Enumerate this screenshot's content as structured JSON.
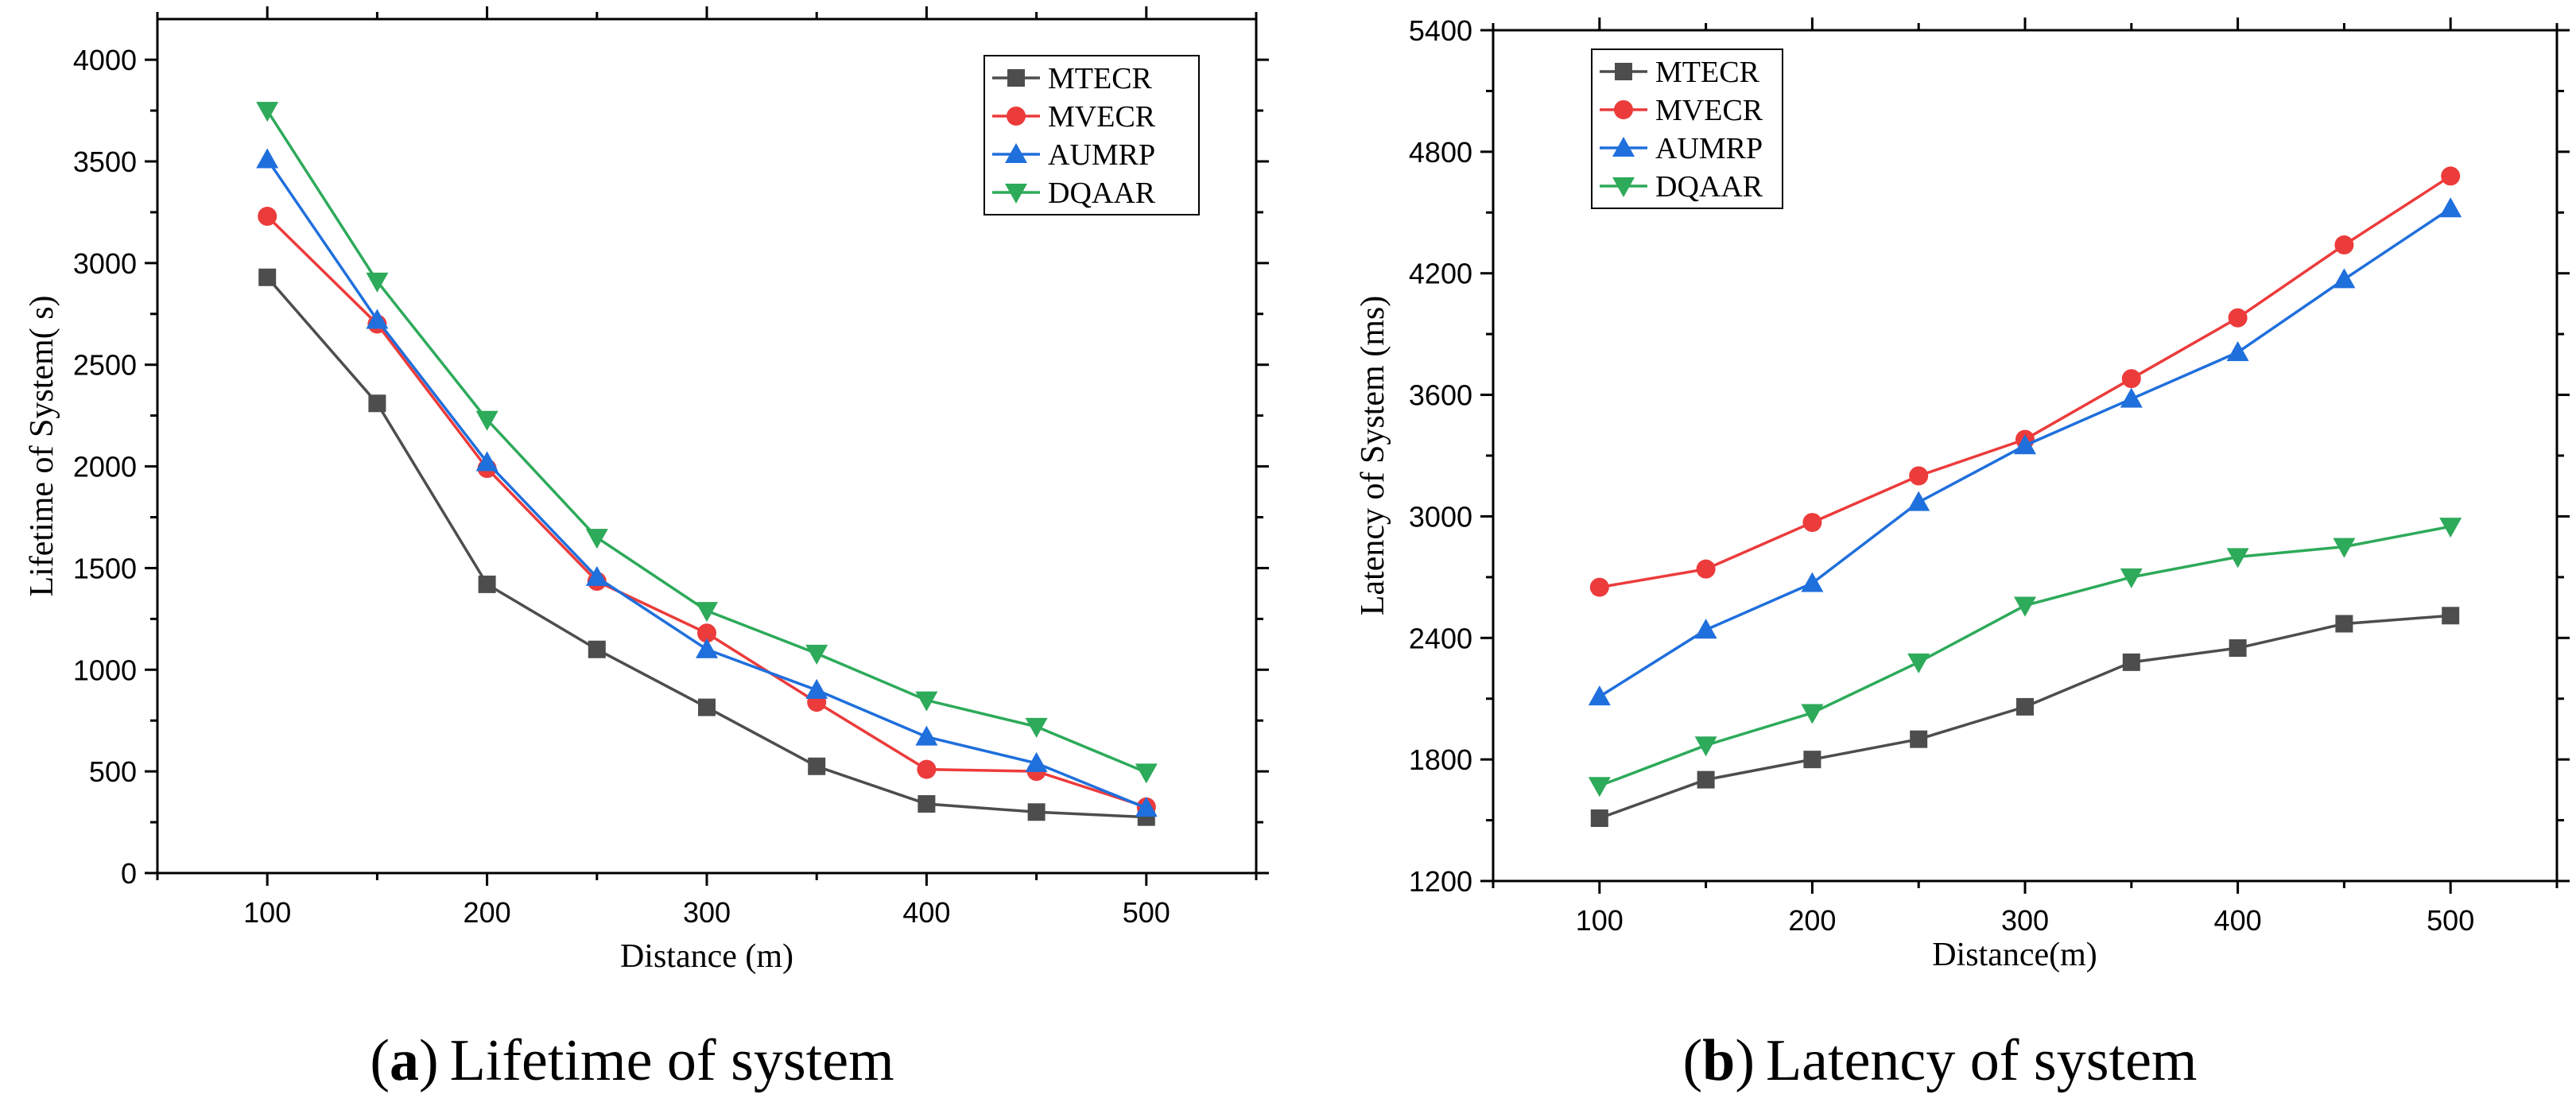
{
  "chart_data": [
    {
      "type": "line",
      "caption_label": "(a)",
      "caption_text": "Lifetime of system",
      "xlabel": "Distance (m)",
      "ylabel": "Lifetime of System( s)",
      "x": [
        100,
        150,
        200,
        250,
        300,
        350,
        400,
        450,
        500
      ],
      "xlim": [
        50,
        550
      ],
      "xticks": [
        100,
        200,
        300,
        400,
        500
      ],
      "ylim": [
        0,
        4200
      ],
      "yticks": [
        0,
        500,
        1000,
        1500,
        2000,
        2500,
        3000,
        3500,
        4000
      ],
      "legend_position": "top-right",
      "series": [
        {
          "name": "MTECR",
          "color": "#4d4d4d",
          "marker": "square",
          "values": [
            2930,
            2310,
            1420,
            1100,
            815,
            525,
            340,
            300,
            275
          ]
        },
        {
          "name": "MVECR",
          "color": "#ec3b3b",
          "marker": "circle",
          "values": [
            3230,
            2700,
            1990,
            1435,
            1180,
            840,
            510,
            500,
            325
          ]
        },
        {
          "name": "AUMRP",
          "color": "#1f6fdc",
          "marker": "triangle-up",
          "values": [
            3510,
            2720,
            2020,
            1455,
            1100,
            900,
            670,
            540,
            320
          ]
        },
        {
          "name": "DQAAR",
          "color": "#2daa5a",
          "marker": "triangle-down",
          "values": [
            3750,
            2910,
            2230,
            1650,
            1290,
            1080,
            850,
            720,
            495
          ]
        }
      ]
    },
    {
      "type": "line",
      "caption_label": "(b)",
      "caption_text": "Latency of system",
      "xlabel": "Distance(m)",
      "ylabel": "Latency of System (ms)",
      "x": [
        100,
        150,
        200,
        250,
        300,
        350,
        400,
        450,
        500
      ],
      "xlim": [
        50,
        550
      ],
      "xticks": [
        100,
        200,
        300,
        400,
        500
      ],
      "ylim": [
        1200,
        5400
      ],
      "yticks": [
        1200,
        1800,
        2400,
        3000,
        3600,
        4200,
        4800,
        5400
      ],
      "legend_position": "top-left",
      "series": [
        {
          "name": "MTECR",
          "color": "#4d4d4d",
          "marker": "square",
          "values": [
            1510,
            1700,
            1800,
            1900,
            2060,
            2280,
            2350,
            2470,
            2510
          ]
        },
        {
          "name": "MVECR",
          "color": "#ec3b3b",
          "marker": "circle",
          "values": [
            2650,
            2740,
            2970,
            3200,
            3380,
            3680,
            3980,
            4340,
            4680
          ]
        },
        {
          "name": "AUMRP",
          "color": "#1f6fdc",
          "marker": "triangle-up",
          "values": [
            2110,
            2440,
            2670,
            3070,
            3350,
            3580,
            3810,
            4170,
            4520
          ]
        },
        {
          "name": "DQAAR",
          "color": "#2daa5a",
          "marker": "triangle-down",
          "values": [
            1670,
            1870,
            2030,
            2280,
            2560,
            2700,
            2800,
            2850,
            2950
          ]
        }
      ]
    }
  ]
}
